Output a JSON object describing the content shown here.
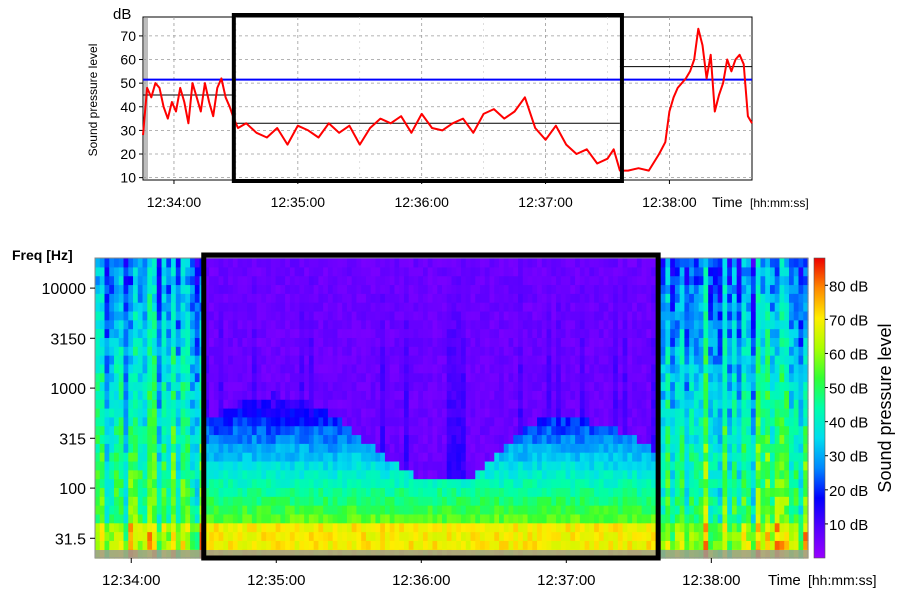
{
  "chart_data": [
    {
      "type": "line",
      "ylabel": "Sound pressure level",
      "yunit": "dB",
      "xlabel": "Time",
      "xunit": "[hh:mm:ss]",
      "ylim": [
        9,
        78
      ],
      "yticks": [
        10,
        20,
        30,
        40,
        50,
        60,
        70
      ],
      "xlim": [
        "12:33:45",
        "12:38:40"
      ],
      "xticks": [
        "12:34:00",
        "12:35:00",
        "12:36:00",
        "12:37:00",
        "12:38:00"
      ],
      "grid": true,
      "reference_levels": [
        {
          "value": 51.5,
          "color": "#0000ff"
        },
        {
          "value": 45,
          "color": "#000000",
          "from": "12:33:45",
          "to": "12:34:29"
        },
        {
          "value": 33,
          "color": "#000000",
          "from": "12:34:29",
          "to": "12:37:36"
        },
        {
          "value": 57,
          "color": "#000000",
          "from": "12:37:36",
          "to": "12:38:40"
        }
      ],
      "highlight": {
        "from": "12:34:29",
        "to": "12:37:37",
        "color": "#000000"
      },
      "series": [
        {
          "color": "#ff0000",
          "x": [
            "12:33:45",
            "12:33:47",
            "12:33:49",
            "12:33:51",
            "12:33:53",
            "12:33:55",
            "12:33:57",
            "12:33:59",
            "12:34:01",
            "12:34:03",
            "12:34:05",
            "12:34:07",
            "12:34:09",
            "12:34:11",
            "12:34:13",
            "12:34:15",
            "12:34:17",
            "12:34:19",
            "12:34:21",
            "12:34:23",
            "12:34:25",
            "12:34:27",
            "12:34:29",
            "12:34:31",
            "12:34:35",
            "12:34:40",
            "12:34:45",
            "12:34:50",
            "12:34:55",
            "12:35:00",
            "12:35:05",
            "12:35:10",
            "12:35:15",
            "12:35:20",
            "12:35:25",
            "12:35:30",
            "12:35:35",
            "12:35:40",
            "12:35:45",
            "12:35:50",
            "12:35:55",
            "12:36:00",
            "12:36:05",
            "12:36:10",
            "12:36:15",
            "12:36:20",
            "12:36:25",
            "12:36:30",
            "12:36:35",
            "12:36:40",
            "12:36:45",
            "12:36:50",
            "12:36:55",
            "12:37:00",
            "12:37:05",
            "12:37:10",
            "12:37:15",
            "12:37:20",
            "12:37:25",
            "12:37:30",
            "12:37:33",
            "12:37:36",
            "12:37:40",
            "12:37:45",
            "12:37:50",
            "12:37:55",
            "12:37:58",
            "12:38:00",
            "12:38:02",
            "12:38:04",
            "12:38:06",
            "12:38:08",
            "12:38:10",
            "12:38:12",
            "12:38:14",
            "12:38:16",
            "12:38:18",
            "12:38:20",
            "12:38:22",
            "12:38:24",
            "12:38:26",
            "12:38:28",
            "12:38:30",
            "12:38:32",
            "12:38:34",
            "12:38:36",
            "12:38:38",
            "12:38:40"
          ],
          "y": [
            28,
            48,
            44,
            50,
            48,
            40,
            35,
            42,
            38,
            48,
            42,
            33,
            50,
            44,
            38,
            50,
            42,
            36,
            48,
            52,
            44,
            40,
            35,
            31,
            33,
            29,
            27,
            31,
            24,
            32,
            30,
            27,
            33,
            29,
            32,
            24,
            31,
            35,
            33,
            36,
            29,
            37,
            31,
            30,
            33,
            35,
            29,
            37,
            39,
            35,
            38,
            44,
            31,
            26,
            32,
            24,
            20,
            22,
            16,
            18,
            22,
            13,
            13,
            14,
            13,
            20,
            25,
            38,
            44,
            48,
            50,
            52,
            55,
            60,
            73,
            66,
            52,
            62,
            38,
            45,
            50,
            60,
            55,
            60,
            62,
            58,
            36,
            33
          ]
        }
      ]
    },
    {
      "type": "heatmap",
      "ylabel": "Freq [Hz]",
      "xlabel": "Time",
      "xunit": "[hh:mm:ss]",
      "yscale": "log",
      "yticks": [
        "31.5",
        "100",
        "315",
        "1000",
        "3150",
        "10000"
      ],
      "xticks": [
        "12:34:00",
        "12:35:00",
        "12:36:00",
        "12:37:00",
        "12:38:00"
      ],
      "xlim": [
        "12:33:45",
        "12:38:40"
      ],
      "highlight": {
        "from": "12:34:30",
        "to": "12:37:38",
        "color": "#000000"
      },
      "colorbar": {
        "label": "Sound pressure level",
        "ticks": [
          "10 dB",
          "20 dB",
          "30 dB",
          "40 dB",
          "50 dB",
          "60 dB",
          "70 dB",
          "80 dB"
        ],
        "range": [
          0,
          88
        ],
        "colors": [
          "#9900ff",
          "#5500ff",
          "#0000ff",
          "#0088ff",
          "#00ddee",
          "#00ffaa",
          "#33ff33",
          "#aaff00",
          "#ffee00",
          "#ff8800",
          "#ee0000"
        ]
      }
    }
  ]
}
